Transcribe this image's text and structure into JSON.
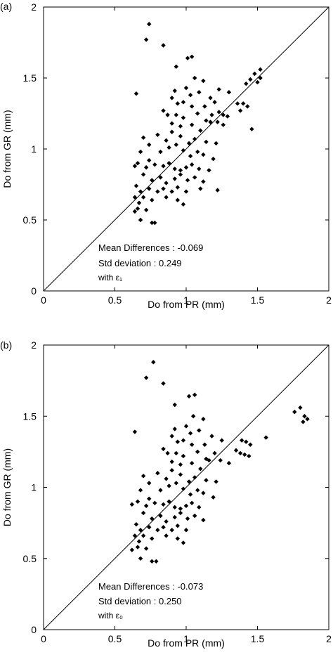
{
  "chart_data": [
    {
      "type": "scatter",
      "panel_label": "(a)",
      "xlabel": "Do from PR (mm)",
      "ylabel": "Do from GR (mm)",
      "xlim": [
        0,
        2
      ],
      "ylim": [
        0,
        2
      ],
      "xticks": [
        "0",
        "0.5",
        "1",
        "1.5",
        "2"
      ],
      "yticks": [
        "0",
        "0.5",
        "1",
        "1.5",
        "2"
      ],
      "reference_line": "1:1",
      "annotations": [
        "Mean Differences : -0.069",
        "Std deviation : 0.249",
        "with ε₁"
      ],
      "points": [
        [
          0.74,
          1.88
        ],
        [
          0.72,
          1.77
        ],
        [
          0.84,
          1.73
        ],
        [
          1.01,
          1.64
        ],
        [
          1.04,
          1.65
        ],
        [
          0.93,
          1.58
        ],
        [
          1.06,
          1.5
        ],
        [
          1.0,
          1.43
        ],
        [
          1.12,
          1.48
        ],
        [
          1.23,
          1.42
        ],
        [
          1.3,
          1.4
        ],
        [
          1.42,
          1.46
        ],
        [
          1.45,
          1.49
        ],
        [
          1.48,
          1.53
        ],
        [
          1.52,
          1.56
        ],
        [
          1.52,
          1.5
        ],
        [
          1.5,
          1.47
        ],
        [
          0.65,
          1.39
        ],
        [
          0.92,
          1.41
        ],
        [
          0.9,
          1.36
        ],
        [
          1.03,
          1.38
        ],
        [
          1.09,
          1.4
        ],
        [
          1.17,
          1.36
        ],
        [
          1.2,
          1.33
        ],
        [
          1.36,
          1.32
        ],
        [
          1.4,
          1.32
        ],
        [
          1.43,
          1.3
        ],
        [
          1.38,
          1.27
        ],
        [
          0.94,
          1.32
        ],
        [
          0.98,
          1.33
        ],
        [
          1.04,
          1.3
        ],
        [
          1.13,
          1.3
        ],
        [
          1.18,
          1.24
        ],
        [
          1.23,
          1.26
        ],
        [
          1.26,
          1.24
        ],
        [
          1.29,
          1.23
        ],
        [
          0.84,
          1.27
        ],
        [
          0.87,
          1.24
        ],
        [
          0.93,
          1.24
        ],
        [
          0.98,
          1.22
        ],
        [
          1.08,
          1.25
        ],
        [
          1.14,
          1.2
        ],
        [
          1.17,
          1.19
        ],
        [
          1.22,
          1.19
        ],
        [
          1.26,
          1.17
        ],
        [
          0.9,
          1.18
        ],
        [
          0.96,
          1.16
        ],
        [
          1.04,
          1.17
        ],
        [
          1.1,
          1.13
        ],
        [
          1.46,
          1.14
        ],
        [
          0.7,
          1.08
        ],
        [
          0.74,
          1.03
        ],
        [
          0.8,
          1.1
        ],
        [
          0.86,
          1.06
        ],
        [
          0.9,
          1.12
        ],
        [
          0.96,
          1.09
        ],
        [
          1.02,
          1.04
        ],
        [
          1.06,
          1.07
        ],
        [
          1.14,
          1.05
        ],
        [
          1.21,
          1.04
        ],
        [
          0.68,
          0.98
        ],
        [
          0.74,
          0.92
        ],
        [
          0.82,
          0.98
        ],
        [
          0.88,
          1.01
        ],
        [
          0.93,
          1.03
        ],
        [
          0.98,
          0.99
        ],
        [
          1.03,
          0.95
        ],
        [
          1.08,
          0.98
        ],
        [
          1.12,
          0.96
        ],
        [
          1.19,
          0.93
        ],
        [
          0.64,
          0.88
        ],
        [
          0.66,
          0.9
        ],
        [
          0.72,
          0.87
        ],
        [
          0.78,
          0.89
        ],
        [
          0.84,
          0.88
        ],
        [
          0.88,
          0.9
        ],
        [
          0.92,
          0.86
        ],
        [
          0.96,
          0.85
        ],
        [
          1.0,
          0.87
        ],
        [
          1.04,
          0.89
        ],
        [
          1.09,
          0.86
        ],
        [
          1.16,
          0.85
        ],
        [
          0.7,
          0.82
        ],
        [
          0.76,
          0.78
        ],
        [
          0.82,
          0.8
        ],
        [
          0.86,
          0.76
        ],
        [
          0.92,
          0.79
        ],
        [
          0.96,
          0.82
        ],
        [
          1.01,
          0.78
        ],
        [
          1.06,
          0.8
        ],
        [
          1.12,
          0.77
        ],
        [
          0.65,
          0.74
        ],
        [
          0.68,
          0.7
        ],
        [
          0.74,
          0.72
        ],
        [
          0.8,
          0.7
        ],
        [
          0.84,
          0.72
        ],
        [
          0.9,
          0.7
        ],
        [
          0.94,
          0.73
        ],
        [
          1.0,
          0.7
        ],
        [
          1.1,
          0.72
        ],
        [
          1.22,
          0.71
        ],
        [
          0.64,
          0.66
        ],
        [
          0.67,
          0.62
        ],
        [
          0.7,
          0.66
        ],
        [
          0.76,
          0.64
        ],
        [
          0.86,
          0.66
        ],
        [
          0.94,
          0.64
        ],
        [
          0.98,
          0.61
        ],
        [
          0.66,
          0.58
        ],
        [
          0.72,
          0.57
        ],
        [
          0.64,
          0.56
        ],
        [
          0.68,
          0.5
        ],
        [
          0.76,
          0.48
        ],
        [
          0.78,
          0.48
        ]
      ]
    },
    {
      "type": "scatter",
      "panel_label": "(b)",
      "xlabel": "Do from PR (mm)",
      "ylabel": "Do from GR (mm)",
      "xlim": [
        0,
        2
      ],
      "ylim": [
        0,
        2
      ],
      "xticks": [
        "0",
        "0.5",
        "1",
        "1.5",
        "2"
      ],
      "yticks": [
        "0",
        "0.5",
        "1",
        "1.5",
        "2"
      ],
      "reference_line": "1:1",
      "annotations": [
        "Mean Differences : -0.073",
        "Std deviation : 0.250",
        "with ε₀"
      ],
      "points": [
        [
          0.77,
          1.88
        ],
        [
          0.72,
          1.77
        ],
        [
          0.84,
          1.73
        ],
        [
          1.02,
          1.64
        ],
        [
          1.06,
          1.65
        ],
        [
          0.92,
          1.58
        ],
        [
          1.05,
          1.5
        ],
        [
          1.0,
          1.43
        ],
        [
          1.12,
          1.48
        ],
        [
          1.76,
          1.53
        ],
        [
          1.8,
          1.56
        ],
        [
          1.83,
          1.5
        ],
        [
          1.85,
          1.48
        ],
        [
          1.82,
          1.46
        ],
        [
          0.64,
          1.39
        ],
        [
          0.92,
          1.41
        ],
        [
          0.9,
          1.36
        ],
        [
          1.03,
          1.38
        ],
        [
          1.09,
          1.4
        ],
        [
          1.18,
          1.36
        ],
        [
          1.25,
          1.33
        ],
        [
          1.39,
          1.33
        ],
        [
          1.42,
          1.32
        ],
        [
          1.45,
          1.3
        ],
        [
          1.56,
          1.35
        ],
        [
          0.94,
          1.32
        ],
        [
          0.98,
          1.33
        ],
        [
          1.04,
          1.3
        ],
        [
          1.13,
          1.3
        ],
        [
          1.2,
          1.24
        ],
        [
          1.35,
          1.26
        ],
        [
          1.38,
          1.24
        ],
        [
          1.41,
          1.23
        ],
        [
          1.44,
          1.22
        ],
        [
          0.84,
          1.27
        ],
        [
          0.87,
          1.24
        ],
        [
          0.93,
          1.24
        ],
        [
          0.98,
          1.22
        ],
        [
          1.08,
          1.25
        ],
        [
          1.14,
          1.2
        ],
        [
          1.16,
          1.19
        ],
        [
          1.24,
          1.19
        ],
        [
          1.3,
          1.17
        ],
        [
          0.9,
          1.18
        ],
        [
          0.96,
          1.16
        ],
        [
          1.04,
          1.17
        ],
        [
          1.1,
          1.13
        ],
        [
          0.7,
          1.08
        ],
        [
          0.74,
          1.03
        ],
        [
          0.8,
          1.1
        ],
        [
          0.86,
          1.06
        ],
        [
          0.9,
          1.12
        ],
        [
          0.96,
          1.09
        ],
        [
          1.02,
          1.04
        ],
        [
          1.06,
          1.07
        ],
        [
          1.14,
          1.05
        ],
        [
          1.21,
          1.04
        ],
        [
          0.68,
          0.98
        ],
        [
          0.74,
          0.92
        ],
        [
          0.82,
          0.98
        ],
        [
          0.88,
          1.01
        ],
        [
          0.93,
          1.03
        ],
        [
          0.98,
          0.99
        ],
        [
          1.03,
          0.95
        ],
        [
          1.08,
          0.98
        ],
        [
          1.12,
          0.96
        ],
        [
          1.19,
          0.93
        ],
        [
          0.62,
          0.88
        ],
        [
          0.66,
          0.9
        ],
        [
          0.72,
          0.87
        ],
        [
          0.78,
          0.89
        ],
        [
          0.84,
          0.88
        ],
        [
          0.88,
          0.9
        ],
        [
          0.92,
          0.86
        ],
        [
          0.96,
          0.85
        ],
        [
          1.0,
          0.87
        ],
        [
          1.04,
          0.89
        ],
        [
          1.09,
          0.86
        ],
        [
          0.7,
          0.82
        ],
        [
          0.76,
          0.78
        ],
        [
          0.82,
          0.8
        ],
        [
          0.86,
          0.76
        ],
        [
          0.92,
          0.79
        ],
        [
          0.96,
          0.82
        ],
        [
          1.01,
          0.78
        ],
        [
          1.06,
          0.8
        ],
        [
          1.12,
          0.77
        ],
        [
          0.65,
          0.74
        ],
        [
          0.68,
          0.7
        ],
        [
          0.74,
          0.72
        ],
        [
          0.8,
          0.7
        ],
        [
          0.84,
          0.72
        ],
        [
          0.9,
          0.7
        ],
        [
          0.94,
          0.73
        ],
        [
          1.0,
          0.7
        ],
        [
          0.64,
          0.66
        ],
        [
          0.67,
          0.62
        ],
        [
          0.7,
          0.66
        ],
        [
          0.76,
          0.64
        ],
        [
          0.86,
          0.66
        ],
        [
          0.94,
          0.64
        ],
        [
          0.98,
          0.61
        ],
        [
          0.66,
          0.58
        ],
        [
          0.72,
          0.57
        ],
        [
          0.62,
          0.56
        ],
        [
          0.68,
          0.5
        ],
        [
          0.76,
          0.48
        ],
        [
          0.79,
          0.48
        ]
      ]
    }
  ]
}
